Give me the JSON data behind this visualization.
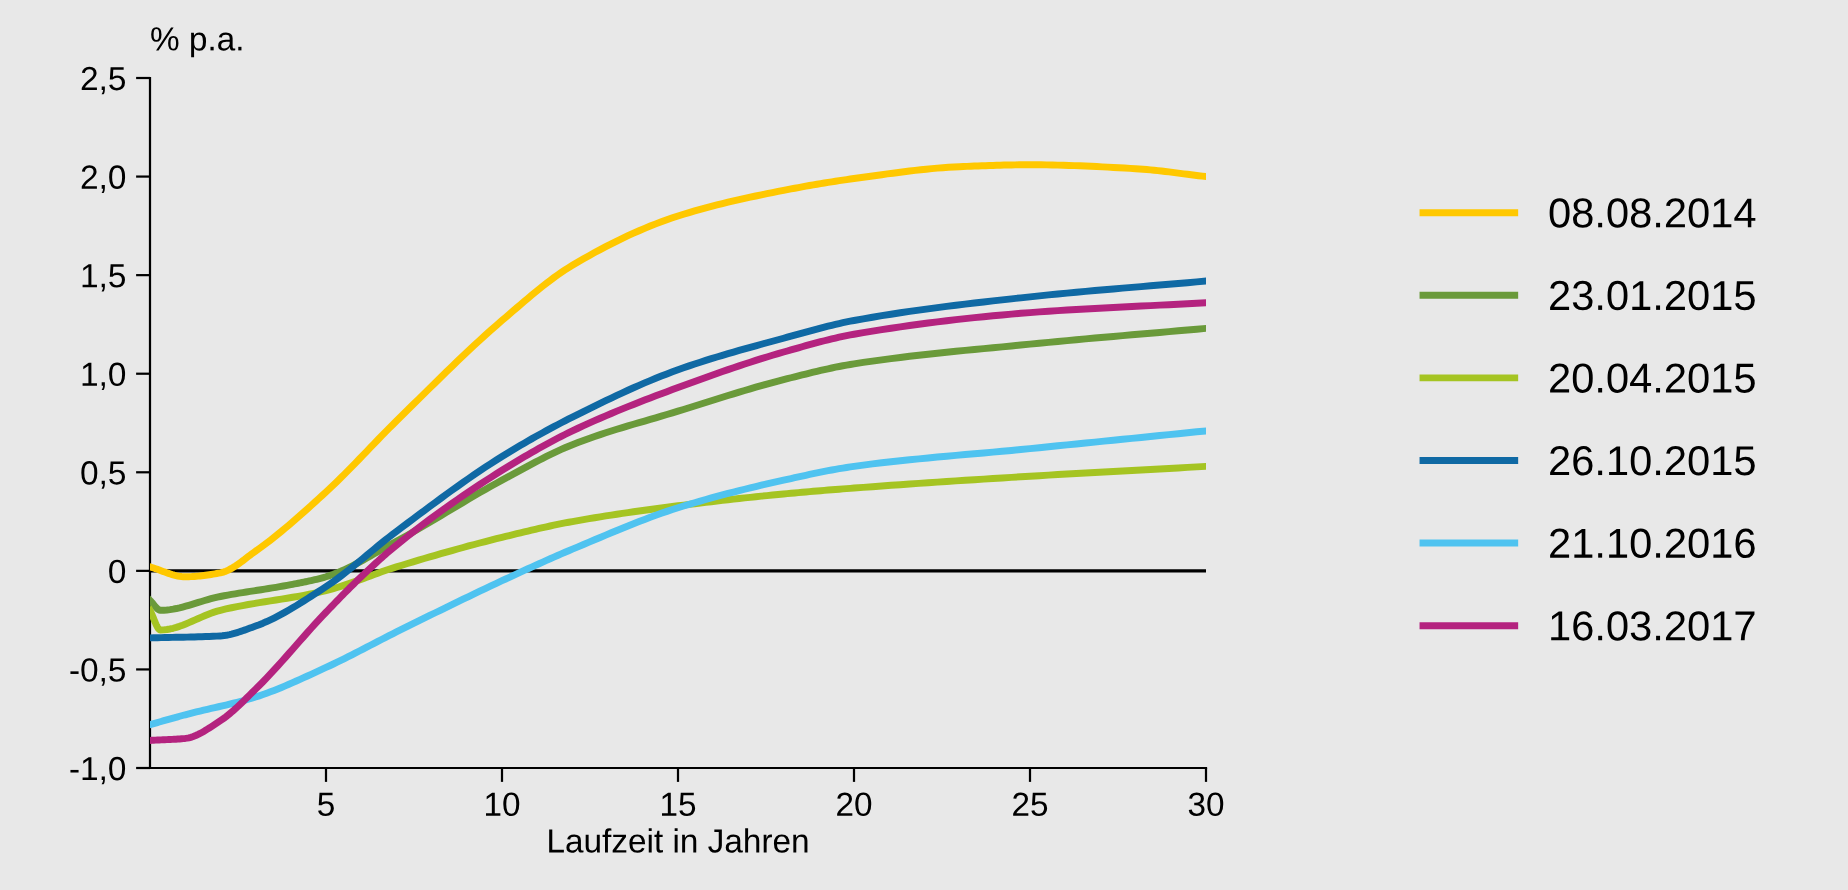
{
  "chart_data": {
    "type": "line",
    "ylabel": "% p.a.",
    "xlabel": "Laufzeit in Jahren",
    "series": [
      {
        "name": "08.08.2014",
        "color": "#ffc800",
        "x": [
          0,
          1,
          2,
          3,
          5,
          7,
          10,
          12,
          15,
          18,
          20,
          23,
          25,
          28,
          30
        ],
        "values": [
          0.02,
          -0.03,
          -0.01,
          0.1,
          0.4,
          0.76,
          1.27,
          1.55,
          1.8,
          1.93,
          1.99,
          2.05,
          2.06,
          2.04,
          2.0
        ]
      },
      {
        "name": "23.01.2015",
        "color": "#6a9a3a",
        "x": [
          0,
          0.3,
          2,
          4,
          5,
          7,
          10,
          12,
          15,
          18,
          20,
          25,
          30
        ],
        "values": [
          -0.15,
          -0.2,
          -0.13,
          -0.07,
          -0.03,
          0.15,
          0.46,
          0.64,
          0.81,
          0.97,
          1.05,
          1.15,
          1.23
        ]
      },
      {
        "name": "20.04.2015",
        "color": "#a5c422",
        "x": [
          0,
          0.3,
          2,
          5,
          7,
          10,
          12,
          15,
          18,
          20,
          25,
          30
        ],
        "values": [
          -0.2,
          -0.3,
          -0.2,
          -0.1,
          0.02,
          0.17,
          0.25,
          0.33,
          0.39,
          0.42,
          0.48,
          0.53
        ]
      },
      {
        "name": "26.10.2015",
        "color": "#0f69a4",
        "x": [
          0,
          2,
          3,
          5,
          7,
          10,
          12,
          15,
          18,
          20,
          25,
          30
        ],
        "values": [
          -0.34,
          -0.33,
          -0.28,
          -0.08,
          0.2,
          0.58,
          0.78,
          1.02,
          1.18,
          1.27,
          1.39,
          1.47
        ]
      },
      {
        "name": "21.10.2016",
        "color": "#4fc3f0",
        "x": [
          0,
          1,
          3,
          5,
          7,
          10,
          12,
          15,
          18,
          20,
          25,
          30
        ],
        "values": [
          -0.78,
          -0.73,
          -0.64,
          -0.49,
          -0.31,
          -0.05,
          0.11,
          0.32,
          0.46,
          0.53,
          0.62,
          0.71
        ]
      },
      {
        "name": "16.03.2017",
        "color": "#b4237f",
        "x": [
          0,
          1,
          2,
          3,
          5,
          6,
          7,
          10,
          12,
          15,
          18,
          20,
          25,
          30
        ],
        "values": [
          -0.86,
          -0.85,
          -0.76,
          -0.6,
          -0.21,
          -0.03,
          0.13,
          0.51,
          0.71,
          0.93,
          1.11,
          1.2,
          1.31,
          1.36
        ]
      }
    ],
    "xlim": [
      0,
      30
    ],
    "xticks": [
      5,
      10,
      15,
      20,
      25,
      30
    ],
    "ylim": [
      -1.0,
      2.5
    ],
    "yticks": [
      {
        "value": -1.0,
        "label": "-1,0"
      },
      {
        "value": -0.5,
        "label": "-0,5"
      },
      {
        "value": 0,
        "label": "0"
      },
      {
        "value": 0.5,
        "label": "0,5"
      },
      {
        "value": 1.0,
        "label": "1,0"
      },
      {
        "value": 1.5,
        "label": "1,5"
      },
      {
        "value": 2.0,
        "label": "2,0"
      },
      {
        "value": 2.5,
        "label": "2,5"
      }
    ],
    "ref_lines": [
      {
        "axis": "y",
        "value": 0,
        "color": "#000000"
      }
    ],
    "grid": false,
    "legend": "right",
    "marker": "none",
    "line_style": "solid"
  }
}
